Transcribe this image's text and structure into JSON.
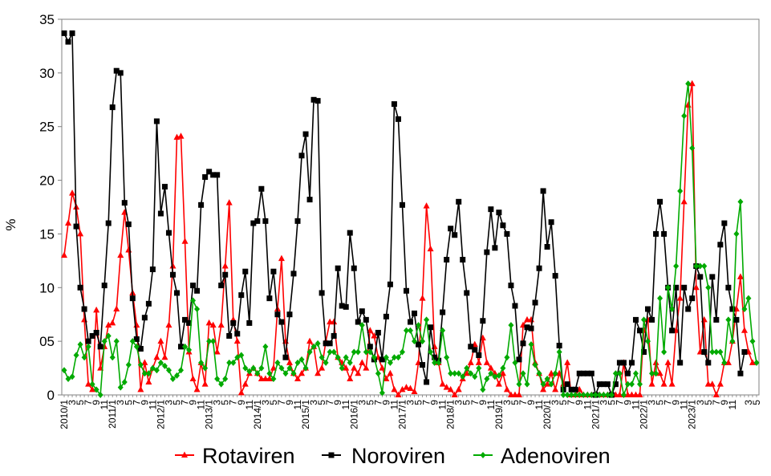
{
  "chart_data": {
    "type": "line",
    "ylabel": "%",
    "ylim": [
      0,
      35
    ],
    "yticks": [
      "0",
      "05",
      "10",
      "15",
      "20",
      "25",
      "30",
      "35"
    ],
    "ytick_values": [
      0,
      5,
      10,
      15,
      20,
      25,
      30,
      35
    ],
    "grid": false,
    "legend_position": "bottom",
    "x_start": "2010/1",
    "x_end": "2023/7",
    "year_labels": [
      "2010/1",
      "2011/1",
      "2012/1",
      "2013/1",
      "2014/1",
      "2015/1",
      "2016/1",
      "2017/1",
      "2018/1",
      "2019/1",
      "2020/1",
      "2021/1",
      "2022/1",
      "2023/1"
    ],
    "series": [
      {
        "name": "Rotaviren",
        "color": "#ff0000",
        "marker": "triangle",
        "values": [
          13,
          16,
          18.8,
          17.5,
          15,
          7,
          1,
          0.5,
          7.9,
          2.5,
          4.5,
          6.5,
          6.7,
          8,
          13,
          17,
          13.5,
          9.5,
          6.5,
          0.5,
          3,
          1.2,
          2.5,
          3.5,
          5,
          3.5,
          6.5,
          12,
          24,
          24.1,
          14.3,
          4,
          1.5,
          0.5,
          3,
          1,
          6.7,
          6.5,
          4,
          6.5,
          12,
          17.9,
          7,
          5,
          0.2,
          1,
          2,
          2.5,
          2,
          1.5,
          1.5,
          1.5,
          2.5,
          8,
          12.7,
          5,
          3,
          2,
          1.5,
          2,
          2.5,
          5,
          4.5,
          2,
          2.5,
          5,
          6.8,
          6.8,
          3.5,
          3,
          2.5,
          1.5,
          2.5,
          2,
          3,
          2.5,
          6,
          5.5,
          3.5,
          2.5,
          1.5,
          2,
          0.5,
          0,
          0.5,
          0.7,
          0.6,
          0.3,
          3,
          9,
          17.6,
          13.6,
          4.5,
          3,
          1,
          0.7,
          0.5,
          0,
          0.5,
          1.5,
          2,
          3,
          4.7,
          3,
          5.3,
          3,
          2.5,
          2,
          1,
          2,
          0.5,
          0,
          0,
          0,
          6.5,
          7,
          7,
          3,
          2,
          0.5,
          1,
          2,
          0.5,
          2,
          1,
          3,
          0,
          0,
          0.5,
          0,
          0,
          0,
          0,
          0,
          0,
          0,
          0,
          0,
          0,
          3,
          0,
          0,
          0,
          0,
          6,
          7,
          1,
          3,
          2,
          1,
          3,
          1,
          6,
          9,
          18,
          27,
          29,
          10,
          4,
          7,
          1,
          1,
          0,
          1,
          3,
          3,
          5,
          8,
          11,
          6,
          4,
          3
        ]
      },
      {
        "name": "Noroviren",
        "color": "#000000",
        "marker": "square",
        "values": [
          33.7,
          32.9,
          33.7,
          15.7,
          10,
          8,
          5,
          5.5,
          5.8,
          4.5,
          10.2,
          16,
          26.8,
          30.2,
          30,
          17.9,
          15.9,
          9,
          5.2,
          4.3,
          7.2,
          8.5,
          11.7,
          25.5,
          16.9,
          19.4,
          15.1,
          11.2,
          9.5,
          4.5,
          7,
          6.7,
          10.2,
          9.7,
          17.7,
          20.3,
          20.8,
          20.5,
          20.5,
          10.2,
          11.2,
          5.5,
          6.7,
          5.7,
          9.3,
          11.5,
          6.7,
          16,
          16.2,
          19.2,
          16.2,
          9,
          11.5,
          7.5,
          6.8,
          3.5,
          7.5,
          11.3,
          16.2,
          22.3,
          24.3,
          18.2,
          27.5,
          27.4,
          9.5,
          4.8,
          4.8,
          5.5,
          11.8,
          8.3,
          8.2,
          15.1,
          11.8,
          6.8,
          7.8,
          7,
          4.5,
          3.3,
          5.8,
          3.3,
          7.3,
          10.3,
          27.1,
          25.7,
          17.7,
          9.7,
          6.8,
          7.6,
          4.7,
          2.8,
          1.2,
          6.3,
          3.5,
          3.2,
          7.7,
          12.6,
          15.5,
          14.9,
          18,
          12.6,
          9.5,
          4.5,
          4.2,
          3.7,
          6.9,
          13.3,
          17.3,
          13.7,
          17,
          15.8,
          15,
          10.2,
          8.3,
          3.3,
          4.8,
          6.3,
          6.2,
          8.6,
          11.8,
          19,
          13.8,
          16.1,
          11.1,
          4.6,
          0.5,
          1,
          0.5,
          0.5,
          2,
          2,
          2,
          2,
          0,
          1,
          1,
          1,
          0,
          1,
          3,
          3,
          2,
          3,
          7,
          6,
          4,
          8,
          7,
          15,
          18,
          15,
          10,
          6,
          10,
          3,
          10,
          8,
          9,
          12,
          11,
          4,
          3,
          11,
          7,
          14,
          16,
          10,
          8,
          7,
          2,
          4
        ]
      },
      {
        "name": "Adenoviren",
        "color": "#00aa00",
        "marker": "diamond",
        "values": [
          2.3,
          1.5,
          1.7,
          3.7,
          4.7,
          3.5,
          4.5,
          1,
          0.5,
          0,
          5,
          5.5,
          3.5,
          5,
          0.7,
          1.2,
          2.8,
          5,
          4.5,
          2.8,
          2,
          2,
          2.5,
          2.3,
          3,
          2.7,
          2.3,
          1.5,
          1.8,
          2.3,
          4.5,
          4.2,
          8.8,
          8,
          3,
          2.5,
          5,
          5,
          1.5,
          1,
          1.5,
          3,
          3,
          3.5,
          3.7,
          2.5,
          2.2,
          2.5,
          2,
          2.5,
          4.5,
          2,
          1.5,
          3,
          2.5,
          2,
          2.5,
          2,
          3,
          3.3,
          2.5,
          4,
          4.5,
          4.8,
          3.5,
          3,
          4,
          4,
          3.5,
          2.5,
          3.5,
          3,
          4,
          4,
          6.5,
          4,
          4,
          3.5,
          2,
          0.2,
          3.5,
          3,
          3.5,
          3.5,
          4,
          6,
          6,
          5,
          6.5,
          5,
          7,
          4,
          3,
          3,
          6,
          3.5,
          2,
          2,
          2,
          1.7,
          2.5,
          2,
          1.7,
          2.5,
          0.5,
          1.5,
          2,
          1.7,
          1.8,
          2.5,
          3.5,
          6.5,
          3,
          1,
          2,
          1,
          4.7,
          2.8,
          2,
          1,
          1.5,
          1,
          2,
          4,
          0,
          0,
          0,
          0,
          0,
          0,
          0,
          0,
          0,
          0,
          0,
          0,
          0,
          2,
          2,
          0,
          1,
          1,
          2,
          1,
          7,
          5,
          2,
          2,
          9,
          4,
          10,
          8,
          12,
          19,
          26,
          29,
          23,
          12,
          12,
          12,
          10,
          4,
          4,
          4,
          3,
          7,
          5,
          15,
          18,
          8,
          9,
          5,
          3
        ]
      }
    ]
  }
}
